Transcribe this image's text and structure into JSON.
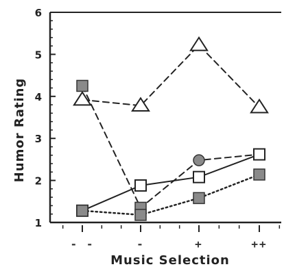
{
  "chart_data": {
    "type": "line",
    "title": "",
    "xlabel": "Music Selection",
    "ylabel": "Humor Rating",
    "categories": [
      "- -",
      "-",
      "+",
      "++"
    ],
    "ylim": [
      1,
      6
    ],
    "yticks": [
      "1",
      "2",
      "3",
      "4",
      "5",
      "6"
    ],
    "grid": false,
    "series": [
      {
        "values": [
          3.92,
          3.78,
          5.22,
          3.74
        ],
        "marker": "open-triangle",
        "line_style": "dashed",
        "color": "#222222"
      },
      {
        "values": [
          4.25,
          1.35,
          2.48,
          2.62
        ],
        "marker": "filled-square",
        "line_style": "dashed",
        "color": "#222222"
      },
      {
        "values": [
          1.28,
          1.88,
          2.08,
          2.62
        ],
        "marker": "open-square",
        "line_style": "solid",
        "color": "#222222"
      },
      {
        "values": [
          1.28,
          1.18,
          1.58,
          2.14
        ],
        "marker": "filled-square",
        "line_style": "dotted",
        "color": "#222222"
      }
    ]
  }
}
